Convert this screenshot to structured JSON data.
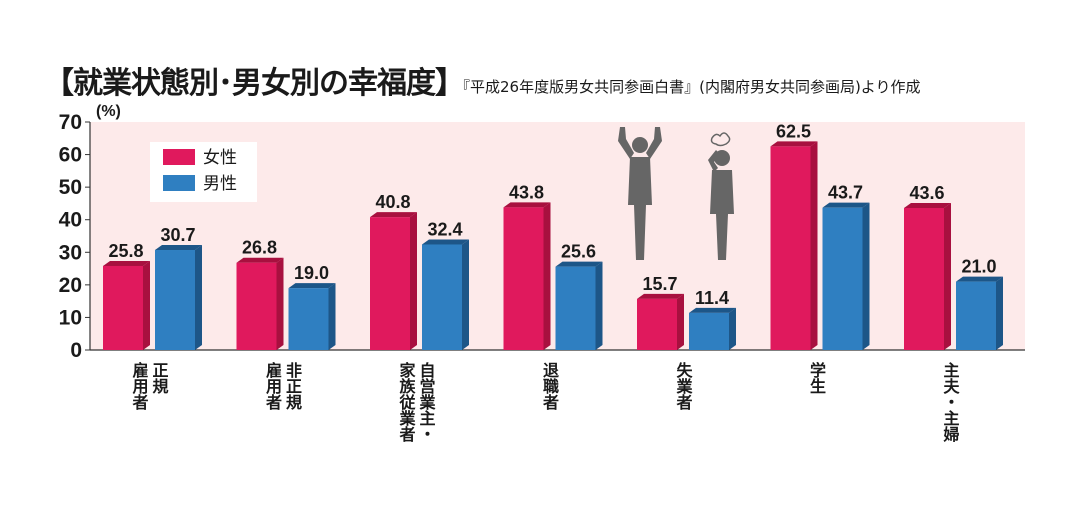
{
  "title": "【就業状態別･男女別の幸福度】",
  "source": "『平成26年度版男女共同参画白書』(内閣府男女共同参画局)より作成",
  "colors": {
    "female": "#e0195d",
    "female_dark": "#a8103f",
    "male": "#2f7fc1",
    "male_dark": "#1d5688",
    "plot_bg": "#fdeaea"
  },
  "icons": [
    "cheering-man-icon",
    "troubled-man-icon"
  ],
  "chart_data": {
    "type": "bar",
    "title": "【就業状態別･男女別の幸福度】",
    "ylabel": "(%)",
    "ylim": [
      0,
      70
    ],
    "yticks": [
      0,
      10,
      20,
      30,
      40,
      50,
      60,
      70
    ],
    "legend_position": "top-left",
    "categories": [
      [
        "正規",
        "雇用者"
      ],
      [
        "非正規",
        "雇用者"
      ],
      [
        "自営業主・",
        "家族従業者"
      ],
      [
        "退職者"
      ],
      [
        "失業者"
      ],
      [
        "学生"
      ],
      [
        "主夫・主婦"
      ]
    ],
    "series": [
      {
        "name": "女性",
        "values": [
          25.8,
          26.8,
          40.8,
          43.8,
          15.7,
          62.5,
          43.6
        ]
      },
      {
        "name": "男性",
        "values": [
          30.7,
          19.0,
          32.4,
          25.6,
          11.4,
          43.7,
          21.0
        ]
      }
    ]
  }
}
